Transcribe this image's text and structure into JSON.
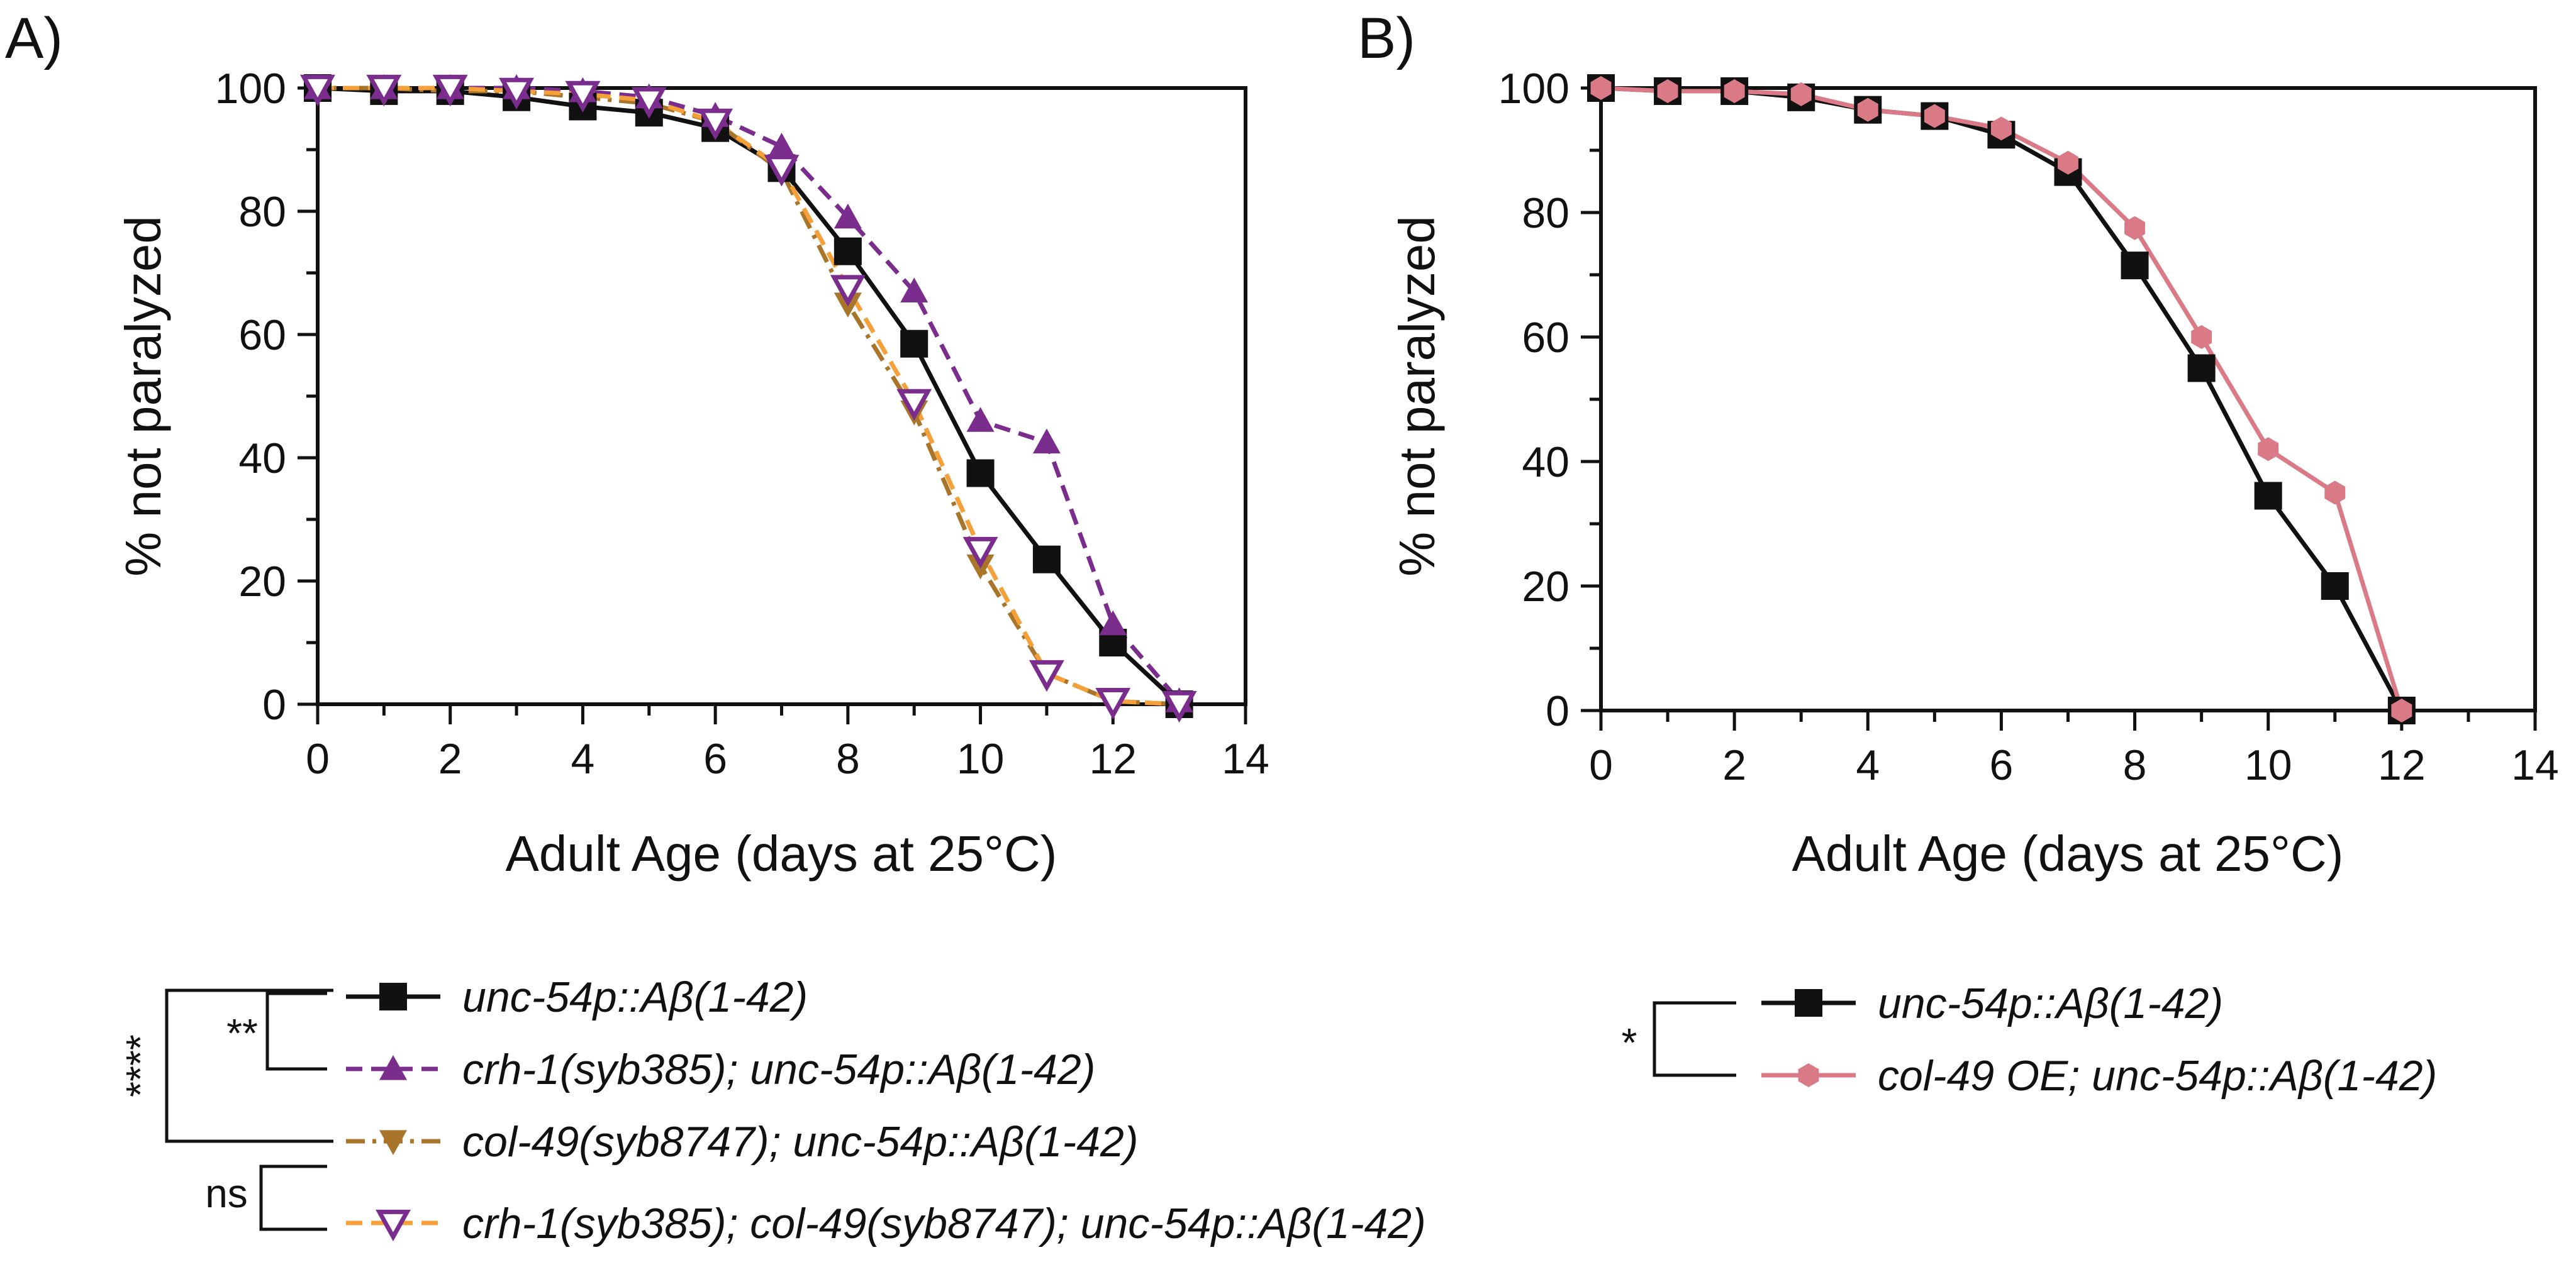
{
  "chart_data": [
    {
      "type": "line",
      "panel_label": "A)",
      "xlabel": "Adult Age (days at 25°C)",
      "ylabel": "% not paralyzed",
      "xlim": [
        0,
        14
      ],
      "ylim": [
        0,
        100
      ],
      "xticks": [
        0,
        2,
        4,
        6,
        8,
        10,
        12,
        14
      ],
      "yticks": [
        0,
        20,
        40,
        60,
        80,
        100
      ],
      "grid": false,
      "series": [
        {
          "name": "unc-54p::Aβ(1-42)",
          "color": "#111111",
          "marker": "square",
          "dash": "solid",
          "x": [
            0,
            1,
            2,
            3,
            4,
            5,
            6,
            7,
            8,
            9,
            10,
            11,
            12,
            13
          ],
          "y": [
            100,
            99.5,
            99.5,
            98.5,
            97,
            96,
            93.5,
            87,
            73.5,
            58.5,
            37.5,
            23.5,
            10,
            0
          ]
        },
        {
          "name": "crh-1(syb385); unc-54p::Aβ(1-42)",
          "color": "#7b2d8e",
          "marker": "triangle-up",
          "dash": "dashed",
          "x": [
            0,
            1,
            2,
            3,
            4,
            5,
            6,
            7,
            8,
            9,
            10,
            11,
            12,
            13
          ],
          "y": [
            100,
            100,
            100,
            100,
            99.5,
            98.5,
            95.5,
            90.5,
            79,
            67,
            46,
            42.5,
            13,
            0.5
          ]
        },
        {
          "name": "col-49(syb8747); unc-54p::Aβ(1-42)",
          "color": "#a8752a",
          "marker": "triangle-down",
          "dash": "dashdot",
          "x": [
            0,
            1,
            2,
            3,
            4,
            5,
            6,
            7,
            8,
            9,
            10,
            11,
            12,
            13
          ],
          "y": [
            100,
            100,
            99.5,
            99.5,
            98.5,
            97.5,
            94.5,
            86.5,
            65,
            47.5,
            22.5,
            5,
            0.5,
            0
          ]
        },
        {
          "name": "crh-1(syb385); col-49(syb8747); unc-54p::Aβ(1-42)",
          "color": "#f5a03a",
          "edge_color": "#7b2d8e",
          "marker": "triangle-down-open",
          "dash": "dashed",
          "x": [
            0,
            1,
            2,
            3,
            4,
            5,
            6,
            7,
            8,
            9,
            10,
            11,
            12,
            13
          ],
          "y": [
            100,
            100,
            100,
            99.5,
            99,
            98,
            94.5,
            87,
            67.5,
            49,
            25,
            5,
            0.5,
            0
          ]
        }
      ],
      "significance": [
        {
          "pair": "unc-54p vs crh-1",
          "label": "**"
        },
        {
          "pair": "unc-54p vs col-49",
          "label": "****"
        },
        {
          "pair": "col-49 vs crh-1;col-49",
          "label": "ns"
        }
      ]
    },
    {
      "type": "line",
      "panel_label": "B)",
      "xlabel": "Adult Age (days at 25°C)",
      "ylabel": "% not paralyzed",
      "xlim": [
        0,
        14
      ],
      "ylim": [
        0,
        100
      ],
      "xticks": [
        0,
        2,
        4,
        6,
        8,
        10,
        12,
        14
      ],
      "yticks": [
        0,
        20,
        40,
        60,
        80,
        100
      ],
      "grid": false,
      "series": [
        {
          "name": "unc-54p::Aβ(1-42)",
          "color": "#111111",
          "marker": "square",
          "dash": "solid",
          "x": [
            0,
            1,
            2,
            3,
            4,
            5,
            6,
            7,
            8,
            9,
            10,
            11,
            12
          ],
          "y": [
            100,
            99.5,
            99.5,
            98.5,
            96.5,
            95.5,
            92.5,
            86.5,
            71.5,
            55,
            34.5,
            20,
            0
          ]
        },
        {
          "name": "col-49 OE; unc-54p::Aβ(1-42)",
          "color": "#d97a86",
          "marker": "hexagon",
          "dash": "solid",
          "x": [
            0,
            1,
            2,
            3,
            4,
            5,
            6,
            7,
            8,
            9,
            10,
            11,
            12
          ],
          "y": [
            100,
            99.5,
            99.5,
            99,
            96.5,
            95.5,
            93.5,
            88,
            77.5,
            60,
            42,
            35,
            0
          ]
        }
      ],
      "significance": [
        {
          "pair": "unc-54p vs col-49 OE",
          "label": "*"
        }
      ]
    }
  ]
}
